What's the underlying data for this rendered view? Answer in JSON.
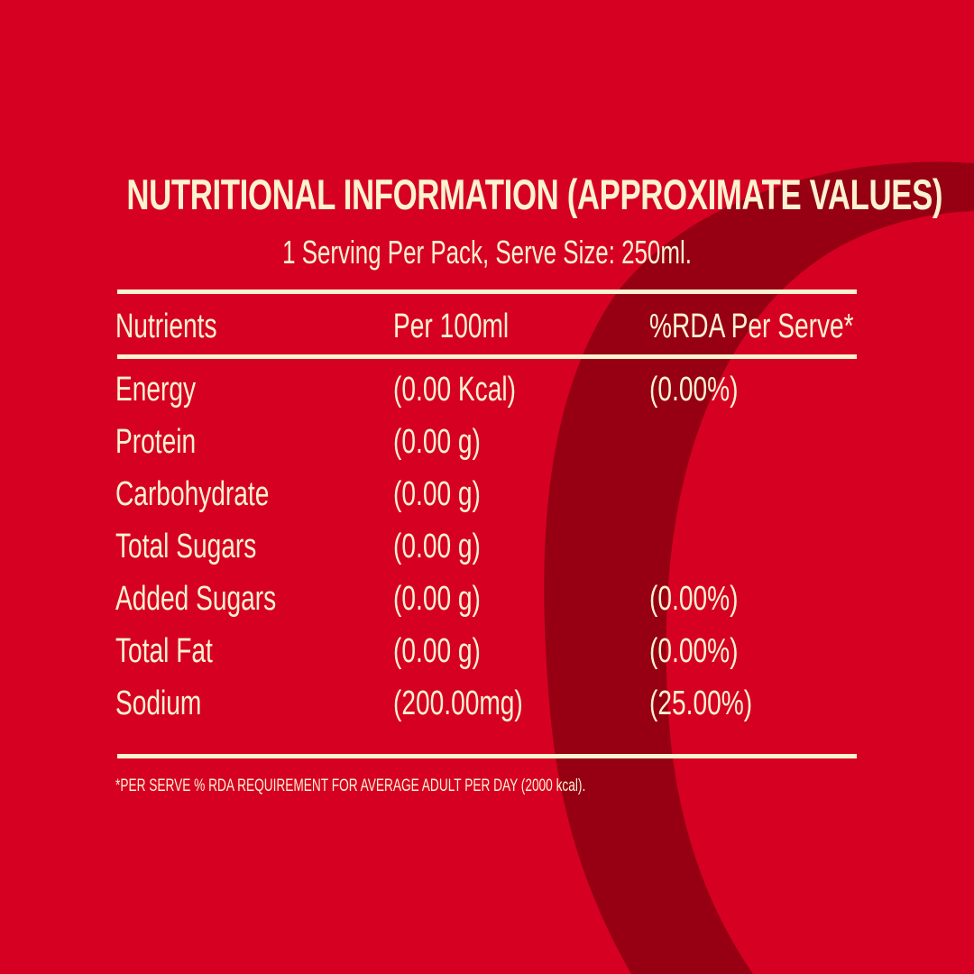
{
  "colors": {
    "background": "#d60023",
    "swoosh": "#960012",
    "text": "#fbf2d2"
  },
  "header": {
    "title": "NUTRITIONAL INFORMATION (APPROXIMATE VALUES)",
    "subtitle": "1 Serving Per Pack, Serve Size: 250ml."
  },
  "table": {
    "columns": [
      "Nutrients",
      "Per 100ml",
      "%RDA Per Serve*"
    ],
    "rows": [
      {
        "nutrient": "Energy",
        "per_100ml": "(0.00 Kcal)",
        "rda": "(0.00%)"
      },
      {
        "nutrient": "Protein",
        "per_100ml": "(0.00 g)",
        "rda": ""
      },
      {
        "nutrient": "Carbohydrate",
        "per_100ml": "(0.00 g)",
        "rda": ""
      },
      {
        "nutrient": "Total Sugars",
        "per_100ml": "(0.00 g)",
        "rda": ""
      },
      {
        "nutrient": "Added Sugars",
        "per_100ml": "(0.00 g)",
        "rda": "(0.00%)"
      },
      {
        "nutrient": "Total Fat",
        "per_100ml": "(0.00 g)",
        "rda": "(0.00%)"
      },
      {
        "nutrient": "Sodium",
        "per_100ml": "(200.00mg)",
        "rda": "(25.00%)"
      }
    ]
  },
  "footnote": "*PER SERVE % RDA REQUIREMENT FOR AVERAGE ADULT PER DAY (2000 kcal)."
}
